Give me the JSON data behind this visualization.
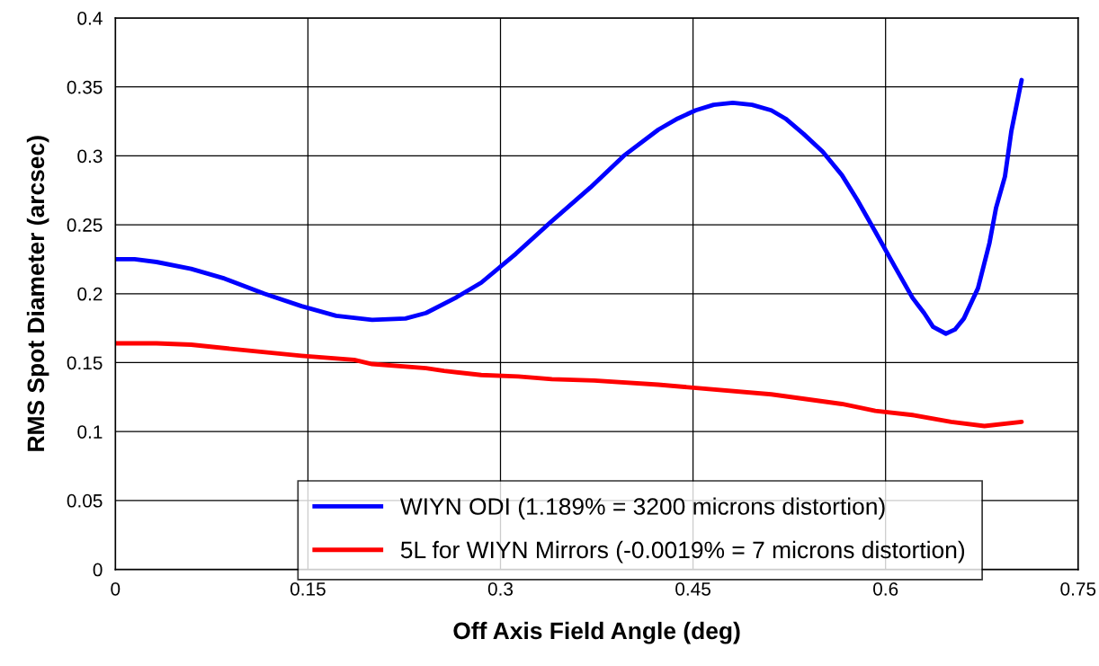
{
  "chart_data": {
    "type": "line",
    "xlabel": "Off Axis Field Angle (deg)",
    "ylabel": "RMS Spot Diameter (arcsec)",
    "xlim": [
      0,
      0.75
    ],
    "xticks": [
      0,
      0.15,
      0.3,
      0.45,
      0.6,
      0.75
    ],
    "ylim": [
      0,
      0.4
    ],
    "yticks": [
      0,
      0.05,
      0.1,
      0.15,
      0.2,
      0.25,
      0.3,
      0.35,
      0.4
    ],
    "grid": true,
    "legend": "bottom",
    "line_style": "solid",
    "marker": "none",
    "series": [
      {
        "name": "WIYN ODI (1.189% = 3200 microns distortion)",
        "color": "#0000ff",
        "x": [
          0,
          0.015,
          0.032,
          0.059,
          0.085,
          0.116,
          0.145,
          0.172,
          0.2,
          0.226,
          0.242,
          0.265,
          0.285,
          0.312,
          0.338,
          0.37,
          0.396,
          0.423,
          0.438,
          0.452,
          0.466,
          0.481,
          0.496,
          0.511,
          0.522,
          0.536,
          0.551,
          0.566,
          0.578,
          0.592,
          0.607,
          0.621,
          0.63,
          0.637,
          0.647,
          0.654,
          0.661,
          0.672,
          0.681,
          0.686,
          0.693,
          0.698,
          0.706
        ],
        "values": [
          0.225,
          0.225,
          0.223,
          0.218,
          0.211,
          0.2,
          0.191,
          0.184,
          0.181,
          0.182,
          0.186,
          0.197,
          0.208,
          0.229,
          0.251,
          0.277,
          0.3,
          0.319,
          0.327,
          0.333,
          0.337,
          0.3385,
          0.337,
          0.333,
          0.327,
          0.316,
          0.303,
          0.286,
          0.268,
          0.245,
          0.22,
          0.197,
          0.186,
          0.176,
          0.171,
          0.174,
          0.182,
          0.204,
          0.237,
          0.262,
          0.285,
          0.318,
          0.355
        ]
      },
      {
        "name": "5L for WIYN Mirrors (-0.0019% = 7 microns distortion)",
        "color": "#ff0000",
        "x": [
          0,
          0.032,
          0.059,
          0.09,
          0.145,
          0.186,
          0.2,
          0.242,
          0.256,
          0.285,
          0.314,
          0.34,
          0.373,
          0.423,
          0.511,
          0.566,
          0.592,
          0.621,
          0.651,
          0.677,
          0.706
        ],
        "values": [
          0.164,
          0.164,
          0.163,
          0.16,
          0.155,
          0.152,
          0.149,
          0.146,
          0.144,
          0.141,
          0.14,
          0.138,
          0.137,
          0.134,
          0.127,
          0.12,
          0.115,
          0.112,
          0.107,
          0.104,
          0.107
        ]
      }
    ]
  }
}
